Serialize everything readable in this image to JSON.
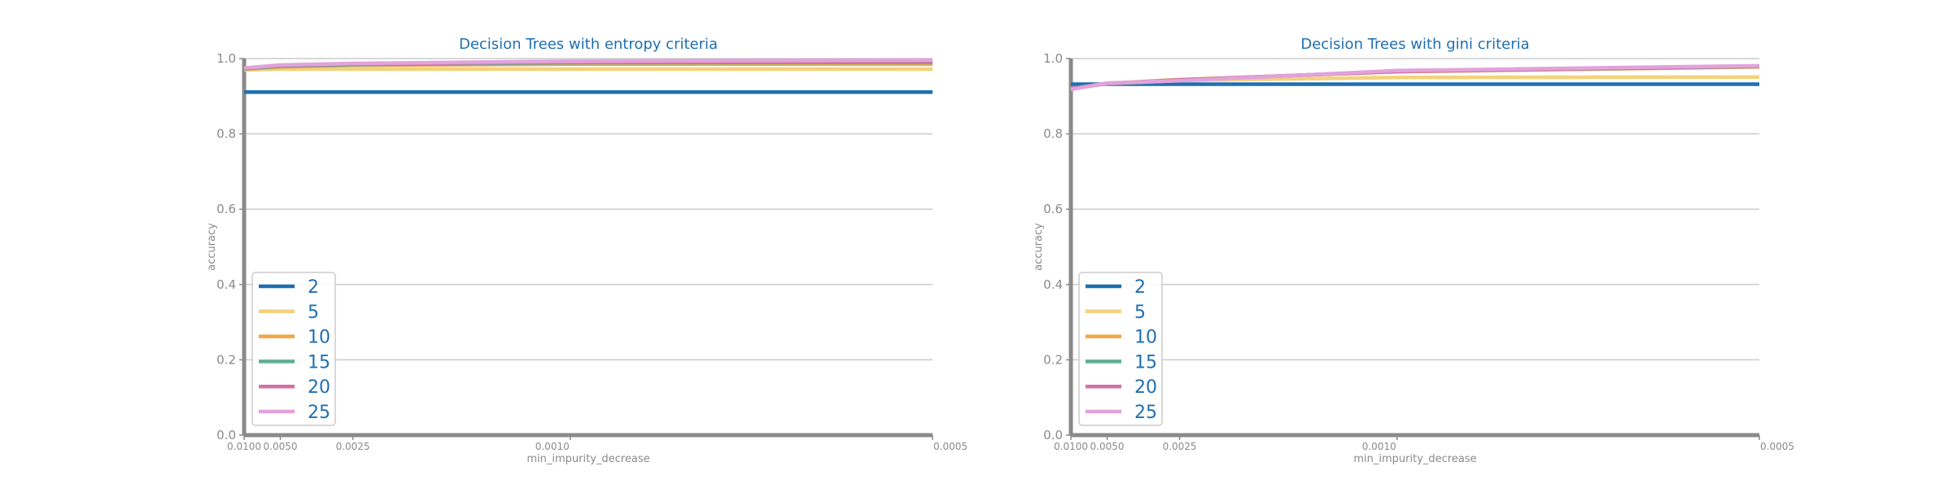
{
  "chart_data": [
    {
      "type": "line",
      "title": "Decision Trees with entropy criteria",
      "xlabel": "min_impurity_decrease",
      "ylabel": "accuracy",
      "x": [
        0.01,
        0.005,
        0.0025,
        0.001,
        0.0005
      ],
      "x_tick_labels": [
        "0.0100",
        "0.0050",
        "0.0025",
        "0.0010",
        "0.0005"
      ],
      "x_scale": "reciprocal (1/x)",
      "ylim": [
        0.0,
        1.0
      ],
      "y_ticks": [
        "0.0",
        "0.2",
        "0.4",
        "0.6",
        "0.8",
        "1.0"
      ],
      "grid": "horizontal",
      "legend_position": "lower-left",
      "series": [
        {
          "name": "2",
          "color": "#1f6fb2",
          "values": [
            0.911,
            0.911,
            0.911,
            0.911,
            0.911
          ]
        },
        {
          "name": "5",
          "color": "#f2d27c",
          "values": [
            0.97,
            0.972,
            0.972,
            0.972,
            0.972
          ]
        },
        {
          "name": "10",
          "color": "#f2a54a",
          "values": [
            0.972,
            0.978,
            0.982,
            0.985,
            0.985
          ]
        },
        {
          "name": "15",
          "color": "#5fae93",
          "values": [
            0.973,
            0.98,
            0.984,
            0.989,
            0.99
          ]
        },
        {
          "name": "20",
          "color": "#d36fa8",
          "values": [
            0.974,
            0.982,
            0.986,
            0.991,
            0.993
          ]
        },
        {
          "name": "25",
          "color": "#e2a2dc",
          "values": [
            0.975,
            0.983,
            0.987,
            0.993,
            0.996
          ]
        }
      ]
    },
    {
      "type": "line",
      "title": "Decision Trees with gini criteria",
      "xlabel": "min_impurity_decrease",
      "ylabel": "accuracy",
      "x": [
        0.01,
        0.005,
        0.0025,
        0.001,
        0.0005
      ],
      "x_tick_labels": [
        "0.0100",
        "0.0050",
        "0.0025",
        "0.0010",
        "0.0005"
      ],
      "x_scale": "reciprocal (1/x)",
      "ylim": [
        0.0,
        1.0
      ],
      "y_ticks": [
        "0.0",
        "0.2",
        "0.4",
        "0.6",
        "0.8",
        "1.0"
      ],
      "grid": "horizontal",
      "legend_position": "lower-left",
      "series": [
        {
          "name": "2",
          "color": "#1f6fb2",
          "values": [
            0.932,
            0.932,
            0.932,
            0.932,
            0.932
          ]
        },
        {
          "name": "5",
          "color": "#f2d27c",
          "values": [
            0.92,
            0.933,
            0.942,
            0.95,
            0.951
          ]
        },
        {
          "name": "10",
          "color": "#f2a54a",
          "values": [
            0.92,
            0.934,
            0.944,
            0.965,
            0.978
          ]
        },
        {
          "name": "15",
          "color": "#5fae93",
          "values": [
            0.92,
            0.934,
            0.943,
            0.966,
            0.979
          ]
        },
        {
          "name": "20",
          "color": "#d36fa8",
          "values": [
            0.92,
            0.934,
            0.943,
            0.966,
            0.98
          ]
        },
        {
          "name": "25",
          "color": "#e2a2dc",
          "values": [
            0.918,
            0.935,
            0.941,
            0.968,
            0.981
          ]
        }
      ]
    }
  ]
}
